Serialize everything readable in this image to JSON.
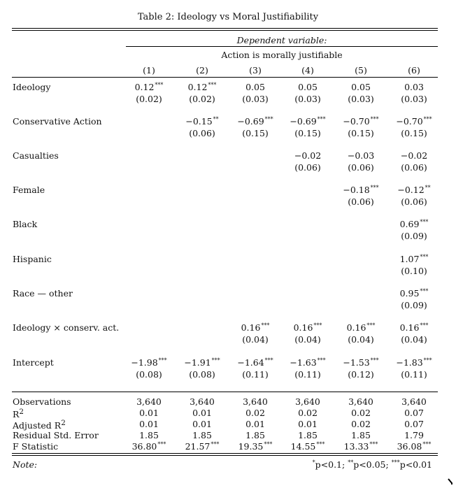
{
  "title": "Table 2: Ideology vs Moral Justifiability",
  "dependent_variable_label": "Dependent variable:",
  "dependent_variable": "Action is morally justifiable",
  "columns": [
    "(1)",
    "(2)",
    "(3)",
    "(4)",
    "(5)",
    "(6)"
  ],
  "rows": [
    {
      "label": "Ideology",
      "coef": [
        "0.12***",
        "0.12***",
        "0.05",
        "0.05",
        "0.05",
        "0.03"
      ],
      "se": [
        "(0.02)",
        "(0.02)",
        "(0.03)",
        "(0.03)",
        "(0.03)",
        "(0.03)"
      ]
    },
    {
      "label": "Conservative Action",
      "coef": [
        "",
        "−0.15**",
        "−0.69***",
        "−0.69***",
        "−0.70***",
        "−0.70***"
      ],
      "se": [
        "",
        "(0.06)",
        "(0.15)",
        "(0.15)",
        "(0.15)",
        "(0.15)"
      ]
    },
    {
      "label": "Casualties",
      "coef": [
        "",
        "",
        "",
        "−0.02",
        "−0.03",
        "−0.02"
      ],
      "se": [
        "",
        "",
        "",
        "(0.06)",
        "(0.06)",
        "(0.06)"
      ]
    },
    {
      "label": "Female",
      "coef": [
        "",
        "",
        "",
        "",
        "−0.18***",
        "−0.12**"
      ],
      "se": [
        "",
        "",
        "",
        "",
        "(0.06)",
        "(0.06)"
      ]
    },
    {
      "label": "Black",
      "coef": [
        "",
        "",
        "",
        "",
        "",
        "0.69***"
      ],
      "se": [
        "",
        "",
        "",
        "",
        "",
        "(0.09)"
      ]
    },
    {
      "label": "Hispanic",
      "coef": [
        "",
        "",
        "",
        "",
        "",
        "1.07***"
      ],
      "se": [
        "",
        "",
        "",
        "",
        "",
        "(0.10)"
      ]
    },
    {
      "label": "Race — other",
      "coef": [
        "",
        "",
        "",
        "",
        "",
        "0.95***"
      ],
      "se": [
        "",
        "",
        "",
        "",
        "",
        "(0.09)"
      ]
    },
    {
      "label": "Ideology × conserv. act.",
      "coef": [
        "",
        "",
        "0.16***",
        "0.16***",
        "0.16***",
        "0.16***"
      ],
      "se": [
        "",
        "",
        "(0.04)",
        "(0.04)",
        "(0.04)",
        "(0.04)"
      ]
    },
    {
      "label": "Intercept",
      "coef": [
        "−1.98***",
        "−1.91***",
        "−1.64***",
        "−1.63***",
        "−1.53***",
        "−1.83***"
      ],
      "se": [
        "(0.08)",
        "(0.08)",
        "(0.11)",
        "(0.11)",
        "(0.12)",
        "(0.11)"
      ]
    }
  ],
  "stats": [
    {
      "label": "Observations",
      "values": [
        "3,640",
        "3,640",
        "3,640",
        "3,640",
        "3,640",
        "3,640"
      ]
    },
    {
      "label": "R2",
      "values": [
        "0.01",
        "0.01",
        "0.02",
        "0.02",
        "0.02",
        "0.07"
      ]
    },
    {
      "label": "Adjusted R2",
      "values": [
        "0.01",
        "0.01",
        "0.01",
        "0.01",
        "0.02",
        "0.07"
      ]
    },
    {
      "label": "Residual Std. Error",
      "values": [
        "1.85",
        "1.85",
        "1.85",
        "1.85",
        "1.85",
        "1.79"
      ]
    },
    {
      "label": "F Statistic",
      "values": [
        "36.80***",
        "21.57***",
        "19.35***",
        "14.55***",
        "13.33***",
        "36.08***"
      ]
    }
  ],
  "note_label": "Note:",
  "note_text": "*p<0.1; **p<0.05; ***p<0.01"
}
